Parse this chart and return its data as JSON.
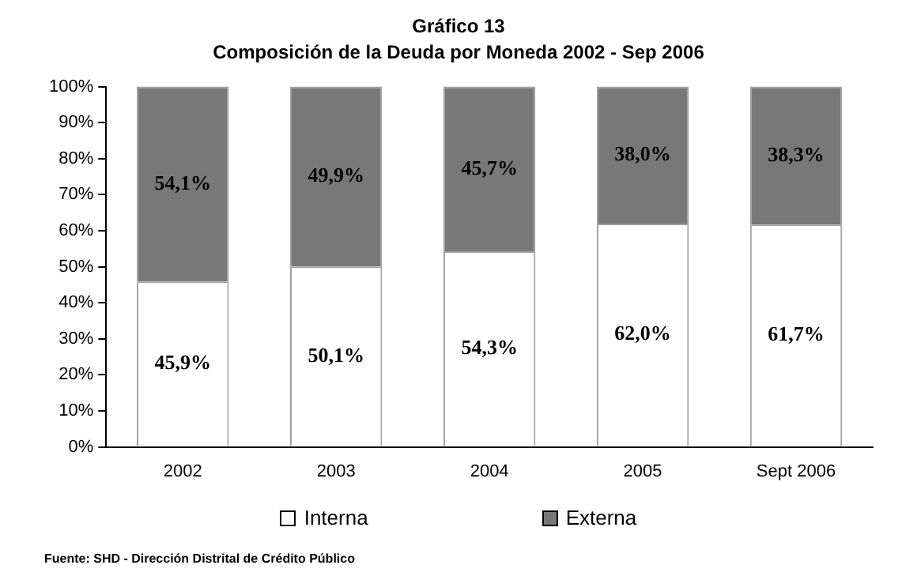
{
  "chart_data": {
    "type": "bar",
    "title": "Gráfico 13",
    "subtitle": "Composición de la Deuda por Moneda 2002 - Sep 2006",
    "categories": [
      "2002",
      "2003",
      "2004",
      "2005",
      "Sept 2006"
    ],
    "stacked": true,
    "series": [
      {
        "name": "Interna",
        "color": "#ffffff",
        "values": [
          45.9,
          50.1,
          54.3,
          62.0,
          61.7
        ],
        "value_labels": [
          "45,9%",
          "50,1%",
          "54,3%",
          "62,0%",
          "61,7%"
        ]
      },
      {
        "name": "Externa",
        "color": "#787878",
        "values": [
          54.1,
          49.9,
          45.7,
          38.0,
          38.3
        ],
        "value_labels": [
          "54,1%",
          "49,9%",
          "45,7%",
          "38,0%",
          "38,3%"
        ]
      }
    ],
    "ylim": [
      0,
      100
    ],
    "yticks": [
      {
        "value": 0,
        "label": "0%"
      },
      {
        "value": 10,
        "label": "10%"
      },
      {
        "value": 20,
        "label": "20%"
      },
      {
        "value": 30,
        "label": "30%"
      },
      {
        "value": 40,
        "label": "40%"
      },
      {
        "value": 50,
        "label": "50%"
      },
      {
        "value": 60,
        "label": "60%"
      },
      {
        "value": 70,
        "label": "70%"
      },
      {
        "value": 80,
        "label": "80%"
      },
      {
        "value": 90,
        "label": "90%"
      },
      {
        "value": 100,
        "label": "100%"
      }
    ],
    "legend": "bottom",
    "grid": false,
    "annotations": [
      "Fuente: SHD - Dirección Distrital de Crédito Público"
    ]
  }
}
